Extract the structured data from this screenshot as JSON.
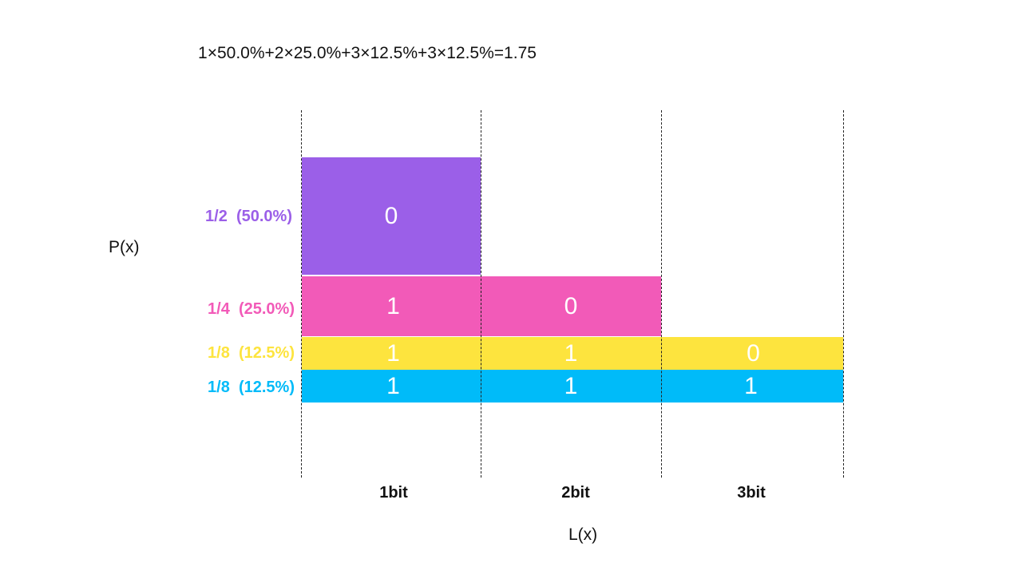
{
  "formula": "1×50.0%+2×25.0%+3×12.5%+3×12.5%=1.75",
  "y_axis_label": "P(x)",
  "x_axis_label": "L(x)",
  "rows": [
    {
      "prob_label": "1/2  (50.0%)",
      "color": "#9b5fe8",
      "codes": [
        "0"
      ]
    },
    {
      "prob_label": "1/4  (25.0%)",
      "color": "#f25ab8",
      "codes": [
        "1",
        "0"
      ]
    },
    {
      "prob_label": "1/8  (12.5%)",
      "color": "#fde43e",
      "codes": [
        "1",
        "1",
        "0"
      ]
    },
    {
      "prob_label": "1/8  (12.5%)",
      "color": "#00bbf9",
      "codes": [
        "1",
        "1",
        "1"
      ]
    }
  ],
  "columns": [
    "1bit",
    "2bit",
    "3bit"
  ]
}
